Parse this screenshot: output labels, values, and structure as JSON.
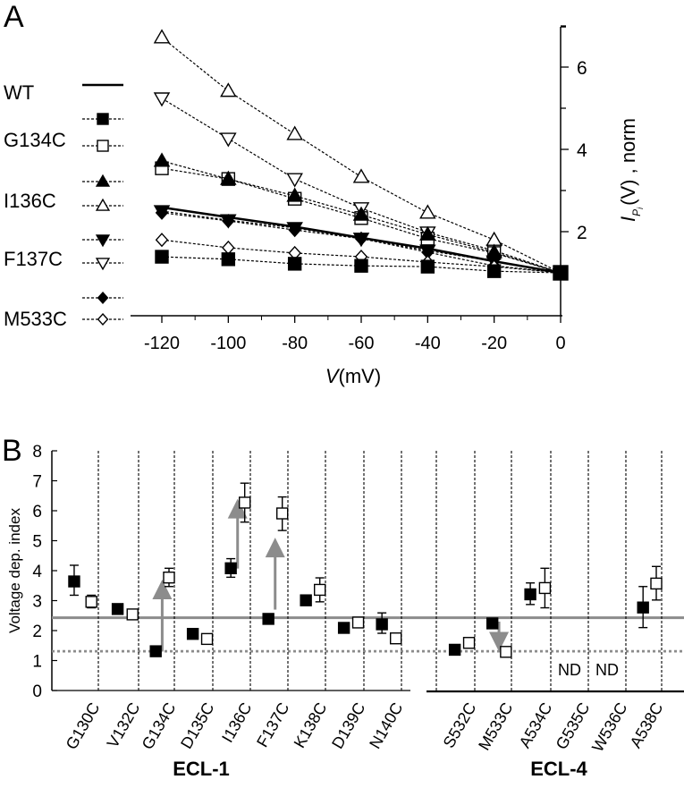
{
  "chart_data": [
    {
      "panel_label": "A",
      "type": "line",
      "xlabel_italic": "V",
      "xlabel_rest": "(mV)",
      "ylabel_italic": "I",
      "ylabel_sub": "P",
      "ylabel_subsub": "i",
      "ylabel_rest": "(V) , norm",
      "xlim": [
        -130,
        0
      ],
      "ylim": [
        0.8,
        7
      ],
      "x_ticks": [
        -120,
        -100,
        -80,
        -60,
        -40,
        -20,
        0
      ],
      "x_tick_labels": [
        "-120",
        "-100",
        "-80",
        "-60",
        "-40",
        "-20",
        "0"
      ],
      "y_ticks": [
        2,
        4,
        6
      ],
      "y_tick_labels": [
        "2",
        "4",
        "6"
      ],
      "y_axis_side": "right",
      "grid": false,
      "legend_placement": "left",
      "x": [
        -120,
        -100,
        -80,
        -60,
        -40,
        -20,
        0
      ],
      "legend_groups": [
        "WT",
        "G134C",
        "I136C",
        "F137C",
        "M533C"
      ],
      "series": [
        {
          "group": "WT",
          "marker": "none",
          "line": "solid",
          "values": [
            2.59,
            2.35,
            2.12,
            1.85,
            1.59,
            1.28,
            1.0
          ]
        },
        {
          "group": "G134C",
          "marker": "square-filled",
          "line": "dashed",
          "values": [
            1.39,
            1.33,
            1.22,
            1.17,
            1.15,
            1.04,
            1.0
          ]
        },
        {
          "group": "G134C",
          "marker": "square-open",
          "line": "dashed",
          "values": [
            3.54,
            3.28,
            2.8,
            2.33,
            1.83,
            1.48,
            1.0
          ]
        },
        {
          "group": "I136C",
          "marker": "triangle-up-filled",
          "line": "dashed",
          "values": [
            3.72,
            3.28,
            2.87,
            2.41,
            1.93,
            1.5,
            1.0
          ]
        },
        {
          "group": "I136C",
          "marker": "triangle-up-open",
          "line": "dashed",
          "values": [
            6.72,
            5.42,
            4.37,
            3.33,
            2.46,
            1.8,
            1.0
          ]
        },
        {
          "group": "F137C",
          "marker": "triangle-down-filled",
          "line": "dashed",
          "values": [
            2.5,
            2.28,
            2.09,
            1.83,
            1.54,
            1.28,
            1.0
          ]
        },
        {
          "group": "F137C",
          "marker": "triangle-down-open",
          "line": "dashed",
          "values": [
            5.24,
            4.26,
            3.28,
            2.57,
            1.98,
            1.54,
            1.0
          ]
        },
        {
          "group": "M533C",
          "marker": "diamond-filled",
          "line": "dashed",
          "values": [
            2.46,
            2.26,
            2.04,
            1.83,
            1.5,
            1.17,
            1.0
          ]
        },
        {
          "group": "M533C",
          "marker": "diamond-open",
          "line": "dashed",
          "values": [
            1.8,
            1.61,
            1.48,
            1.39,
            1.26,
            1.15,
            1.0
          ]
        }
      ]
    },
    {
      "panel_label": "B",
      "type": "scatter",
      "ylabel": "Voltage dep. index",
      "ylim": [
        0,
        8
      ],
      "y_ticks": [
        0,
        1,
        2,
        3,
        4,
        5,
        6,
        7,
        8
      ],
      "y_tick_labels": [
        "0",
        "1",
        "2",
        "3",
        "4",
        "5",
        "6",
        "7",
        "8"
      ],
      "grid": false,
      "reference_lines": [
        {
          "style": "solid",
          "color": "#8c8c8c",
          "value": 2.43
        },
        {
          "style": "dotted",
          "color": "#8c8c8c",
          "value": 1.31
        }
      ],
      "groups": [
        {
          "label": "ECL-1",
          "categories": [
            {
              "name": "G130C",
              "filled": 3.64,
              "filled_err": [
                3.18,
                4.18
              ],
              "open": 2.96,
              "open_err": [
                2.76,
                3.18
              ]
            },
            {
              "name": "V132C",
              "filled": 2.72,
              "open": 2.54
            },
            {
              "name": "G134C",
              "filled": 1.31,
              "open": 3.77,
              "open_err": [
                3.47,
                4.08
              ],
              "arrow": [
                1.3,
                3.7
              ]
            },
            {
              "name": "D135C",
              "filled": 1.89,
              "open": 1.72
            },
            {
              "name": "I136C",
              "filled": 4.08,
              "filled_err": [
                3.78,
                4.4
              ],
              "open": 6.27,
              "open_err": [
                5.62,
                6.92
              ],
              "arrow": [
                4.07,
                6.4
              ]
            },
            {
              "name": "F137C",
              "filled": 2.39,
              "open": 5.91,
              "open_err": [
                5.34,
                6.46
              ],
              "arrow": [
                2.7,
                5.1
              ]
            },
            {
              "name": "K138C",
              "filled": 3.01,
              "filled_err": [
                2.91,
                3.11
              ],
              "open": 3.36,
              "open_err": [
                2.96,
                3.76
              ]
            },
            {
              "name": "D139C",
              "filled": 2.09,
              "open": 2.27
            },
            {
              "name": "N140C",
              "filled": 2.21,
              "filled_err": [
                1.91,
                2.59
              ],
              "open": 1.74,
              "open_err": [
                1.64,
                1.84
              ]
            }
          ]
        },
        {
          "label": "ECL-4",
          "categories": [
            {
              "name": "S532C",
              "filled": 1.36,
              "open": 1.59
            },
            {
              "name": "M533C",
              "filled": 2.24,
              "open": 1.29,
              "arrow": [
                2.3,
                1.3
              ]
            },
            {
              "name": "A534C",
              "filled": 3.21,
              "filled_err": [
                2.87,
                3.59
              ],
              "open": 3.42,
              "open_err": [
                2.76,
                4.08
              ]
            },
            {
              "name": "G535C",
              "nd": "ND"
            },
            {
              "name": "W536C",
              "nd": "ND"
            },
            {
              "name": "A538C",
              "filled": 2.77,
              "filled_err": [
                2.1,
                3.47
              ],
              "open": 3.57,
              "open_err": [
                3.02,
                4.14
              ]
            }
          ]
        }
      ],
      "colors": {
        "arrow": "#8c8c8c",
        "reference": "#8c8c8c"
      }
    }
  ]
}
